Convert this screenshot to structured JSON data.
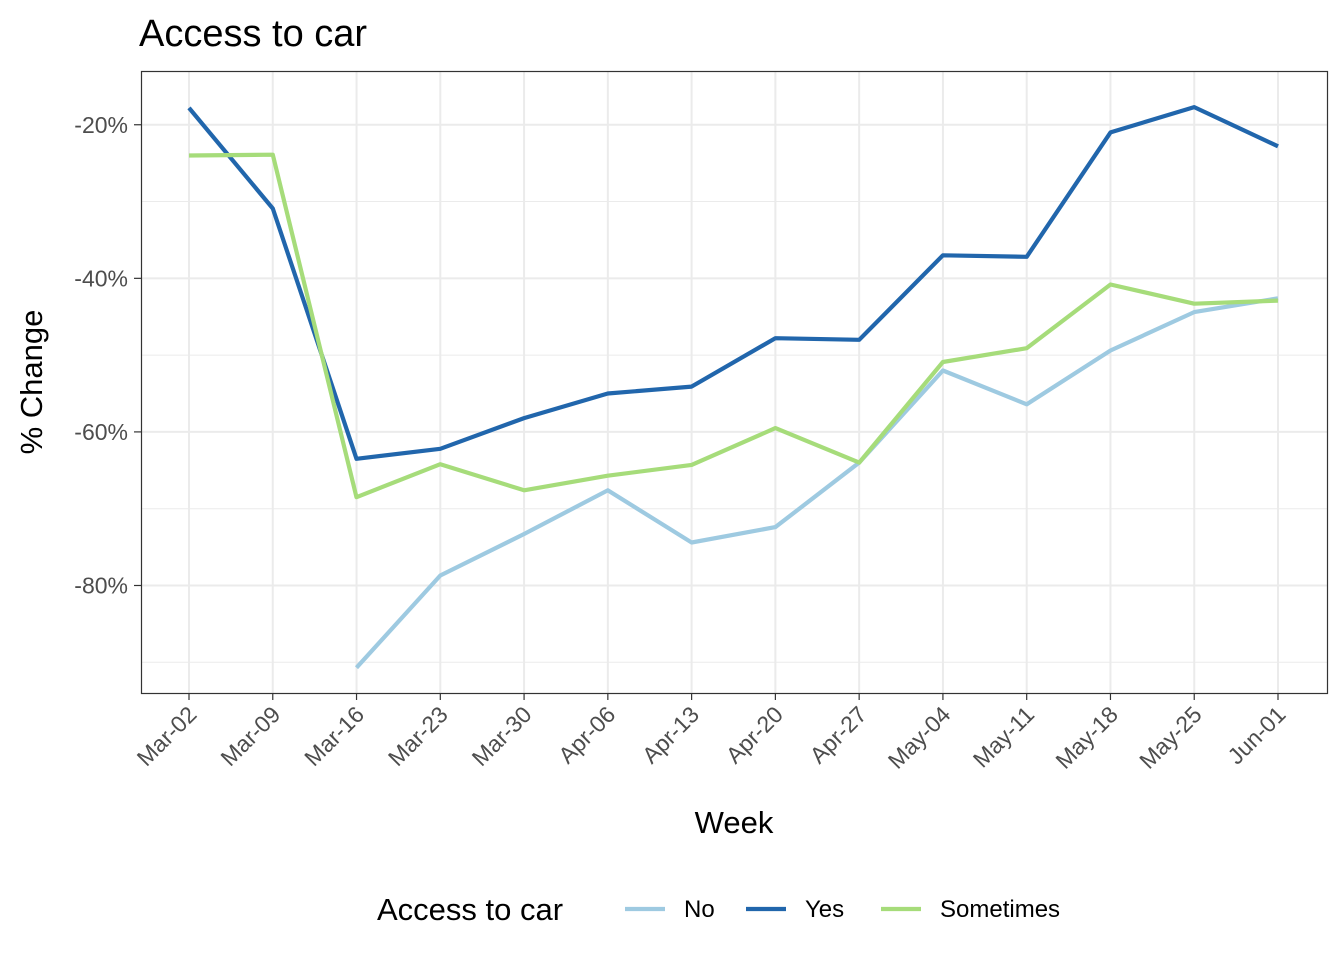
{
  "chart_data": {
    "type": "line",
    "title": "Access to car",
    "xlabel": "Week",
    "ylabel": "% Change",
    "categories": [
      "Mar-02",
      "Mar-09",
      "Mar-16",
      "Mar-23",
      "Mar-30",
      "Apr-06",
      "Apr-13",
      "Apr-20",
      "Apr-27",
      "May-04",
      "May-11",
      "May-18",
      "May-25",
      "Jun-01"
    ],
    "y_ticks": [
      -80,
      -60,
      -40,
      -20
    ],
    "y_tick_labels": [
      "-80%",
      "-60%",
      "-40%",
      "-20%"
    ],
    "ylim": [
      -94,
      -13
    ],
    "grid": true,
    "legend": {
      "title": "Access to car",
      "position": "bottom"
    },
    "series": [
      {
        "name": "No",
        "color": "#9ecae1",
        "values": [
          null,
          null,
          -90.7,
          -78.7,
          -73.3,
          -67.6,
          -74.4,
          -72.4,
          -64.0,
          -52.0,
          -56.4,
          -49.4,
          -44.4,
          -42.6
        ]
      },
      {
        "name": "Yes",
        "color": "#2166ac",
        "values": [
          -17.8,
          -30.9,
          -63.5,
          -62.2,
          -58.2,
          -55.0,
          -54.1,
          -47.8,
          -48.0,
          -37.0,
          -37.2,
          -21.0,
          -17.7,
          -22.8
        ]
      },
      {
        "name": "Sometimes",
        "color": "#a6dc7a",
        "values": [
          -24.0,
          -23.9,
          -68.5,
          -64.2,
          -67.6,
          -65.7,
          -64.3,
          -59.5,
          -64.0,
          -50.9,
          -49.1,
          -40.8,
          -43.3,
          -42.9
        ]
      }
    ]
  }
}
